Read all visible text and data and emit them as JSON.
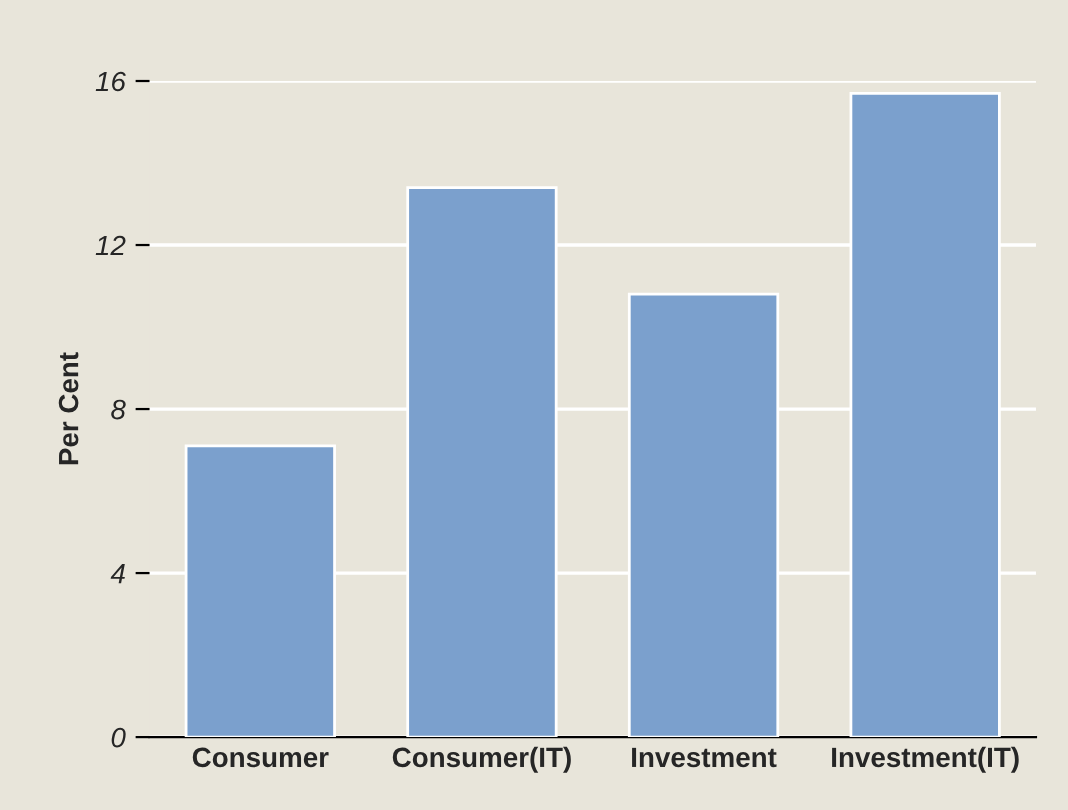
{
  "chart_data": {
    "type": "bar",
    "ylabel": "Per Cent",
    "categories": [
      "Consumer",
      "Consumer(IT)",
      "Investment",
      "Investment(IT)"
    ],
    "values": [
      7.1,
      13.4,
      10.8,
      15.7
    ],
    "color": "#7ba0cd",
    "ylim": [
      0,
      16
    ],
    "yticks": [
      0,
      4,
      8,
      12,
      16
    ],
    "grid": "y"
  }
}
